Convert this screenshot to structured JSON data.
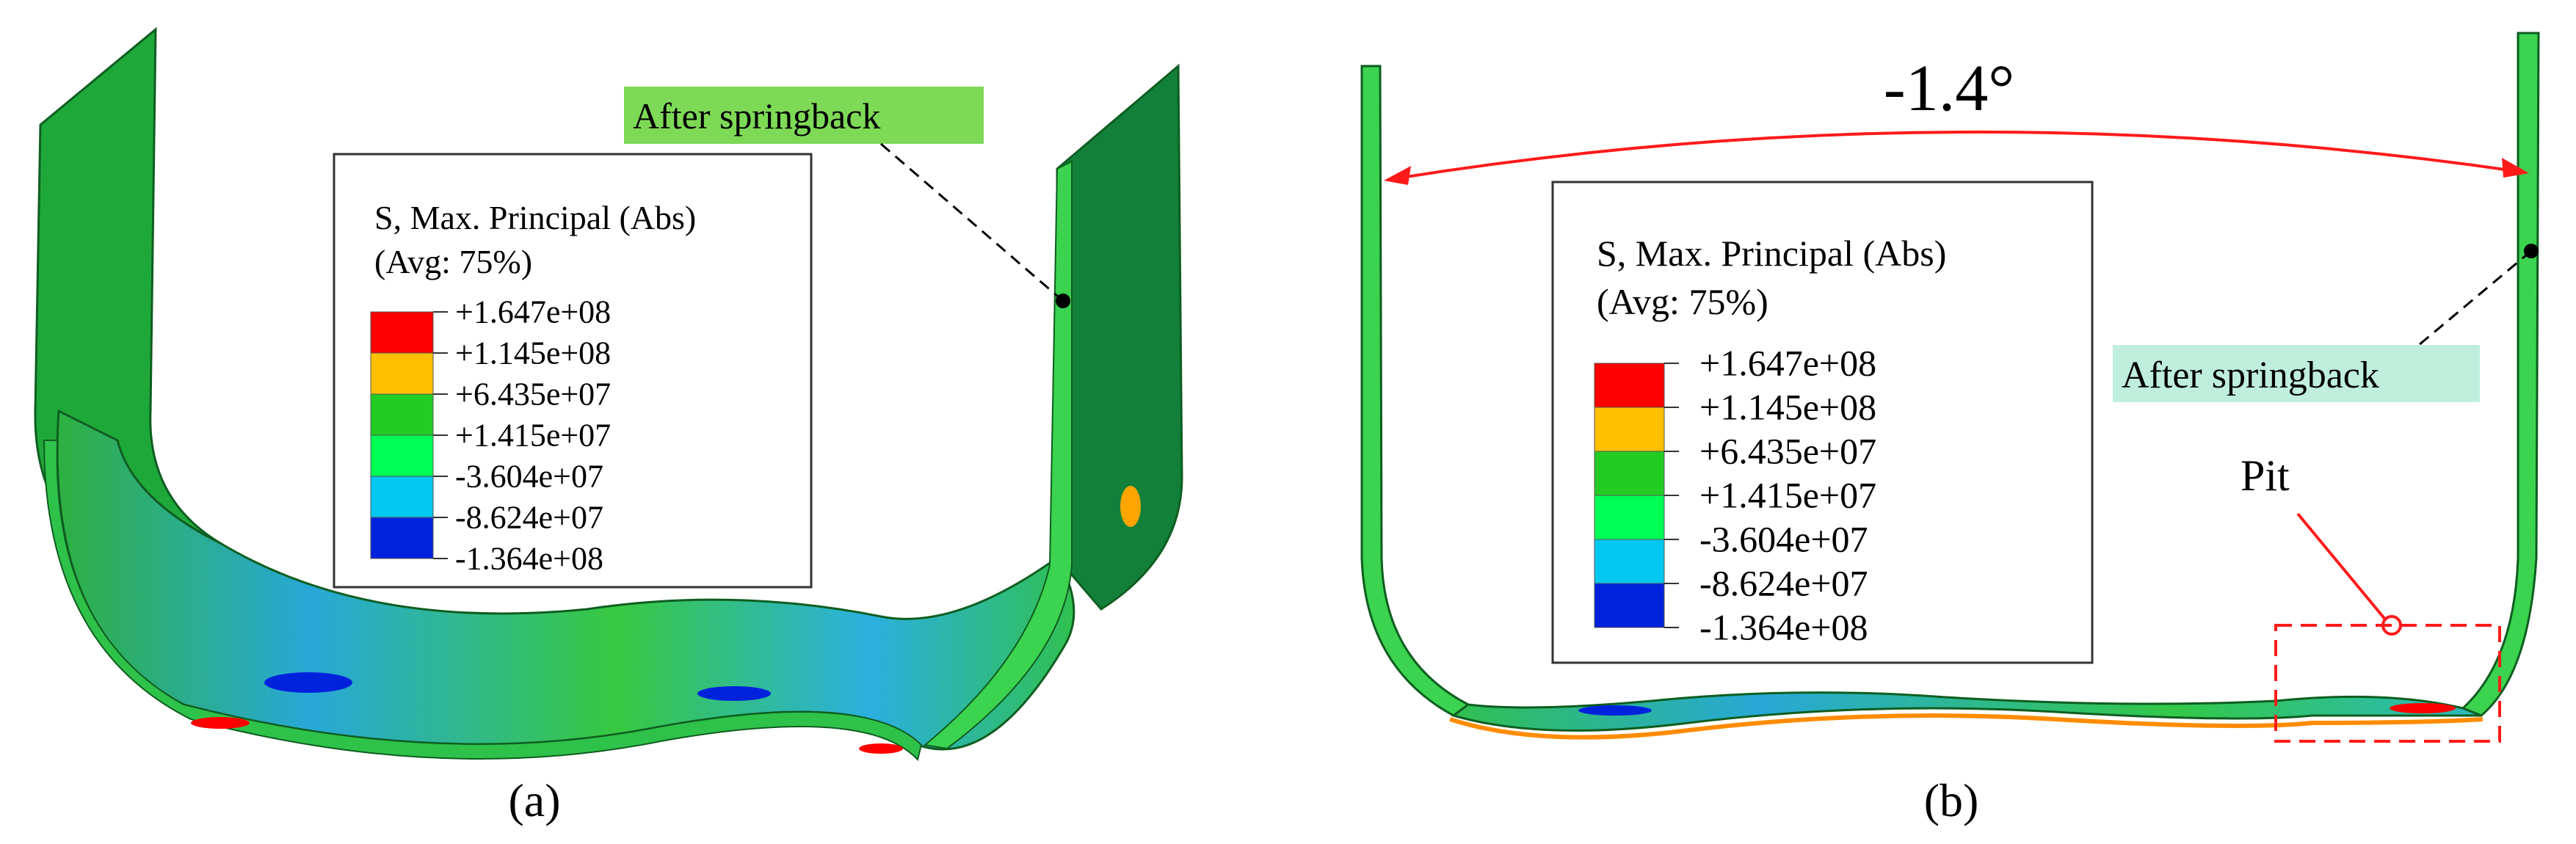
{
  "panel_a": {
    "caption": "(a)",
    "callout_label": "After springback",
    "callout_fill": "#7ED957",
    "legend": {
      "title_line1": "S, Max. Principal (Abs)",
      "title_line2": "(Avg: 75%)",
      "values": [
        "+1.647e+08",
        "+1.145e+08",
        "+6.435e+07",
        "+1.415e+07",
        "-3.604e+07",
        "-8.624e+07",
        "-1.364e+08"
      ],
      "bands": [
        "#FF0000",
        "#FFC000",
        "#22CC22",
        "#00FF55",
        "#00C8F0",
        "#0022DD"
      ]
    }
  },
  "panel_b": {
    "caption": "(b)",
    "angle_label": "-1.4°",
    "callout_label": "After springback",
    "callout_fill": "#BFEEDD",
    "pit_label": "Pit",
    "legend": {
      "title_line1": "S, Max. Principal (Abs)",
      "title_line2": "(Avg: 75%)",
      "values": [
        "+1.647e+08",
        "+1.145e+08",
        "+6.435e+07",
        "+1.415e+07",
        "-3.604e+07",
        "-8.624e+07",
        "-1.364e+08"
      ],
      "bands": [
        "#FF0000",
        "#FFC000",
        "#22CC22",
        "#00FF55",
        "#00C8F0",
        "#0022DD"
      ]
    }
  },
  "colors": {
    "part_green": "#1FA83A",
    "part_dark_green": "#12803A",
    "part_light_green": "#3BD34F",
    "stress_blue": "#25A8E0",
    "annotation_red": "#FF1A1A"
  }
}
